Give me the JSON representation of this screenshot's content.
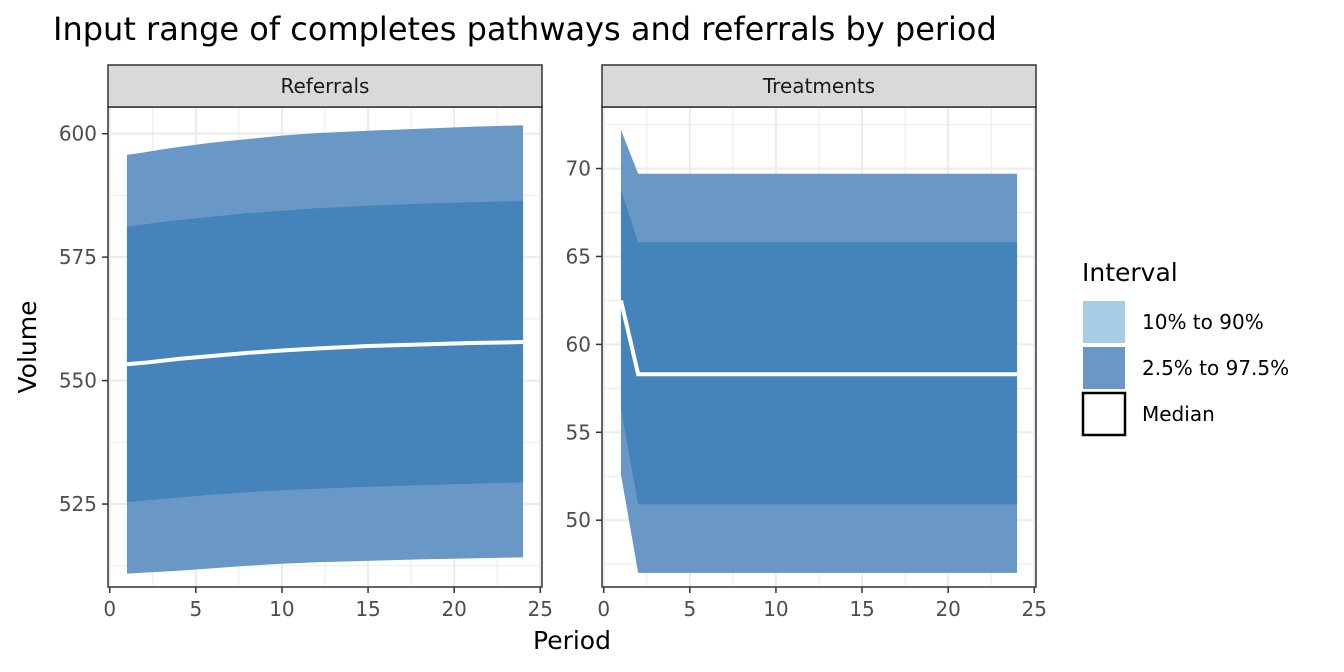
{
  "chart_data": {
    "type": "area",
    "title": "Input range of completes pathways and referrals by period",
    "xlabel": "Period",
    "ylabel": "Volume",
    "legend": {
      "title": "Interval",
      "position": "right",
      "entries": [
        {
          "label": "10% to 90%",
          "color": "#a6cde4"
        },
        {
          "label": "2.5% to 97.5%",
          "color": "#6a98c6"
        },
        {
          "label": "Median",
          "color": "#ffffff"
        }
      ]
    },
    "inner_band_color": "#4583bb",
    "outer_band_color": "#6a98c6",
    "median_color": "#ffffff",
    "facets": [
      {
        "name": "Referrals",
        "xlim": [
          -0.1,
          25.1
        ],
        "ylim": [
          508.2,
          605.4
        ],
        "x_ticks": [
          0,
          5,
          10,
          15,
          20,
          25
        ],
        "y_ticks": [
          525,
          550,
          575,
          600
        ],
        "x": [
          1,
          2,
          3,
          4,
          6,
          8,
          10,
          12,
          15,
          18,
          21,
          24
        ],
        "outer_lower": [
          510.9,
          511.1,
          511.3,
          511.5,
          512.0,
          512.5,
          512.9,
          513.2,
          513.5,
          513.8,
          514.0,
          514.2
        ],
        "inner_lower": [
          525.4,
          525.7,
          526.0,
          526.3,
          526.9,
          527.4,
          527.8,
          528.1,
          528.5,
          528.8,
          529.1,
          529.4
        ],
        "median": [
          553.3,
          553.6,
          554.0,
          554.4,
          555.0,
          555.6,
          556.1,
          556.5,
          557.0,
          557.3,
          557.6,
          557.8
        ],
        "inner_upper": [
          581.2,
          581.6,
          582.1,
          582.5,
          583.2,
          583.9,
          584.4,
          584.9,
          585.4,
          585.8,
          586.1,
          586.4
        ],
        "outer_upper": [
          595.7,
          596.2,
          596.8,
          597.3,
          598.2,
          598.9,
          599.6,
          600.1,
          600.6,
          601.0,
          601.4,
          601.7
        ]
      },
      {
        "name": "Treatments",
        "xlim": [
          -0.1,
          25.1
        ],
        "ylim": [
          46.2,
          73.5
        ],
        "x_ticks": [
          0,
          5,
          10,
          15,
          20,
          25
        ],
        "y_ticks": [
          50,
          55,
          60,
          65,
          70
        ],
        "x": [
          1,
          2,
          24
        ],
        "outer_lower": [
          52.6,
          47.0,
          47.0
        ],
        "inner_lower": [
          56.3,
          50.9,
          50.9
        ],
        "median": [
          62.5,
          58.3,
          58.3
        ],
        "inner_upper": [
          68.8,
          65.8,
          65.8
        ],
        "outer_upper": [
          72.2,
          69.7,
          69.7
        ]
      }
    ]
  }
}
